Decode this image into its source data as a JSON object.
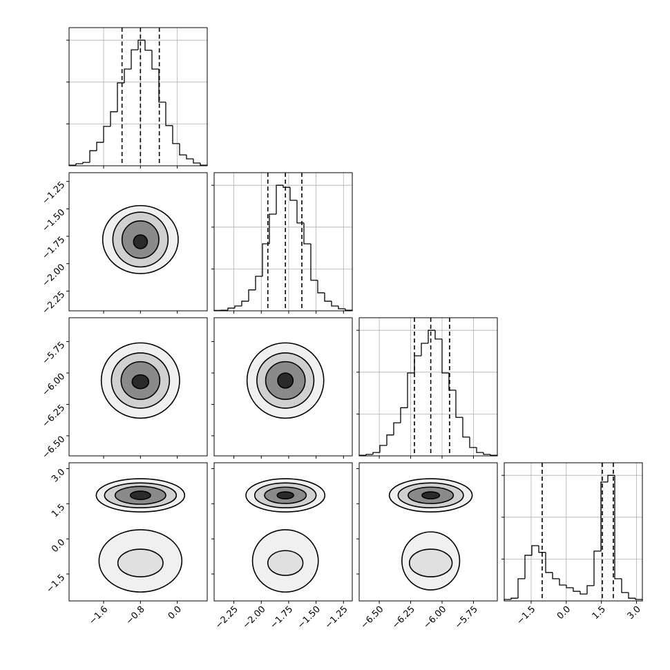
{
  "chart_data": {
    "type": "corner",
    "hist_ylim": [
      0,
      3300
    ],
    "hist_yticks": [
      1000,
      2000,
      3000
    ],
    "grid": true,
    "color": "#000000",
    "params": [
      {
        "lim": [
          -2.35,
          0.65
        ],
        "ticks": [
          {
            "value": -1.6,
            "label": "−1.6"
          },
          {
            "value": -0.8,
            "label": "−0.8"
          },
          {
            "value": 0,
            "label": "0.0"
          }
        ],
        "bins": [
          -2.35,
          -2.2,
          -2.05,
          -1.9,
          -1.75,
          -1.6,
          -1.45,
          -1.3,
          -1.15,
          -1.0,
          -0.85,
          -0.7,
          -0.55,
          -0.4,
          -0.25,
          -0.1,
          0.05,
          0.2,
          0.35,
          0.5,
          0.65
        ],
        "counts": [
          15,
          50,
          80,
          360,
          560,
          940,
          1290,
          1980,
          2310,
          2770,
          3000,
          2760,
          2310,
          1520,
          960,
          530,
          260,
          165,
          66,
          15
        ],
        "quantiles": [
          -1.2,
          -0.8,
          -0.39
        ]
      },
      {
        "lim": [
          -2.43,
          -1.17
        ],
        "ticks": [
          {
            "value": -2.25,
            "label": "−2.25"
          },
          {
            "value": -2.0,
            "label": "−2.00"
          },
          {
            "value": -1.75,
            "label": "−1.75"
          },
          {
            "value": -1.5,
            "label": "−1.50"
          },
          {
            "value": -1.25,
            "label": "−1.25"
          }
        ],
        "bins": [
          -2.43,
          -2.367,
          -2.304,
          -2.241,
          -2.178,
          -2.115,
          -2.052,
          -1.989,
          -1.926,
          -1.863,
          -1.8,
          -1.737,
          -1.674,
          -1.611,
          -1.548,
          -1.485,
          -1.422,
          -1.359,
          -1.296,
          -1.233,
          -1.17
        ],
        "counts": [
          10,
          15,
          65,
          115,
          230,
          500,
          825,
          1600,
          2310,
          3000,
          2950,
          2640,
          2100,
          1600,
          730,
          430,
          230,
          115,
          50,
          15
        ],
        "quantiles": [
          -1.94,
          -1.78,
          -1.63
        ]
      },
      {
        "lim": [
          -6.66,
          -5.56
        ],
        "ticks": [
          {
            "value": -6.5,
            "label": "−6.50"
          },
          {
            "value": -6.25,
            "label": "−6.25"
          },
          {
            "value": -6.0,
            "label": "−6.00"
          },
          {
            "value": -5.75,
            "label": "−5.75"
          }
        ],
        "bins": [
          -6.66,
          -6.605,
          -6.55,
          -6.495,
          -6.44,
          -6.385,
          -6.33,
          -6.275,
          -6.22,
          -6.165,
          -6.11,
          -6.055,
          -6.0,
          -5.945,
          -5.89,
          -5.835,
          -5.78,
          -5.725,
          -5.67,
          -5.615,
          -5.56
        ],
        "counts": [
          15,
          35,
          80,
          250,
          500,
          790,
          1150,
          1980,
          2390,
          2690,
          3000,
          2790,
          1980,
          1570,
          920,
          450,
          200,
          80,
          35,
          15
        ],
        "quantiles": [
          -6.22,
          -6.09,
          -5.94
        ]
      },
      {
        "lim": [
          -2.65,
          3.25
        ],
        "ticks": [
          {
            "value": -1.5,
            "label": "−1.5"
          },
          {
            "value": 0,
            "label": "0.0"
          },
          1.5,
          {
            "value": 3,
            "label": "3.0"
          }
        ],
        "bins": [
          -2.65,
          -2.355,
          -2.06,
          -1.765,
          -1.47,
          -1.175,
          -0.88,
          -0.585,
          -0.29,
          0.005,
          0.3,
          0.595,
          0.89,
          1.185,
          1.48,
          1.775,
          2.07,
          2.365,
          2.66,
          2.955,
          3.25
        ],
        "counts": [
          35,
          65,
          530,
          1090,
          1320,
          1160,
          680,
          530,
          380,
          315,
          230,
          165,
          365,
          1190,
          2840,
          3000,
          530,
          200,
          65,
          35
        ],
        "quantiles": [
          -1.03,
          1.54,
          2.01
        ]
      }
    ],
    "pairs": [
      [
        [
          {
            "cx": -0.8,
            "cy": -1.78,
            "rx": 0.82,
            "ry": 0.31
          },
          {
            "cx": -0.8,
            "cy": -1.78,
            "rx": 0.6,
            "ry": 0.25
          },
          {
            "cx": -0.8,
            "cy": -1.78,
            "rx": 0.4,
            "ry": 0.17
          },
          {
            "cx": -0.8,
            "cy": -1.8,
            "rx": 0.15,
            "ry": 0.063
          }
        ]
      ],
      [
        [
          {
            "cx": -0.8,
            "cy": -6.06,
            "rx": 0.85,
            "ry": 0.3
          },
          {
            "cx": -0.8,
            "cy": -6.06,
            "rx": 0.63,
            "ry": 0.22
          },
          {
            "cx": -0.8,
            "cy": -6.06,
            "rx": 0.42,
            "ry": 0.15
          },
          {
            "cx": -0.8,
            "cy": -6.07,
            "rx": 0.18,
            "ry": 0.055
          }
        ],
        [
          {
            "cx": -1.78,
            "cy": -6.06,
            "rx": 0.35,
            "ry": 0.3
          },
          {
            "cx": -1.78,
            "cy": -6.06,
            "rx": 0.26,
            "ry": 0.22
          },
          {
            "cx": -1.78,
            "cy": -6.06,
            "rx": 0.18,
            "ry": 0.15
          },
          {
            "cx": -1.78,
            "cy": -6.06,
            "rx": 0.07,
            "ry": 0.06
          }
        ]
      ],
      [
        [
          {
            "cx": -0.8,
            "cy": 1.86,
            "rx": 0.96,
            "ry": 0.71
          },
          {
            "cx": -0.8,
            "cy": 1.86,
            "rx": 0.78,
            "ry": 0.53
          },
          {
            "cx": -0.8,
            "cy": 1.86,
            "rx": 0.55,
            "ry": 0.38
          },
          {
            "cx": -0.8,
            "cy": 1.86,
            "rx": 0.22,
            "ry": 0.18
          },
          {
            "cx": -0.8,
            "cy": -0.94,
            "rx": 0.9,
            "ry": 1.33
          },
          {
            "cx": -0.8,
            "cy": -1.03,
            "rx": 0.49,
            "ry": 0.59
          }
        ],
        [
          {
            "cx": -1.78,
            "cy": 1.86,
            "rx": 0.36,
            "ry": 0.71
          },
          {
            "cx": -1.78,
            "cy": 1.86,
            "rx": 0.28,
            "ry": 0.53
          },
          {
            "cx": -1.78,
            "cy": 1.86,
            "rx": 0.19,
            "ry": 0.35
          },
          {
            "cx": -1.78,
            "cy": 1.86,
            "rx": 0.075,
            "ry": 0.15
          },
          {
            "cx": -1.78,
            "cy": -0.94,
            "rx": 0.3,
            "ry": 1.33
          },
          {
            "cx": -1.78,
            "cy": -1.03,
            "rx": 0.16,
            "ry": 0.53
          }
        ],
        [
          {
            "cx": -6.09,
            "cy": 1.86,
            "rx": 0.33,
            "ry": 0.71
          },
          {
            "cx": -6.09,
            "cy": 1.86,
            "rx": 0.26,
            "ry": 0.53
          },
          {
            "cx": -6.09,
            "cy": 1.86,
            "rx": 0.18,
            "ry": 0.35
          },
          {
            "cx": -6.09,
            "cy": 1.86,
            "rx": 0.07,
            "ry": 0.15
          },
          {
            "cx": -6.09,
            "cy": -0.94,
            "rx": 0.23,
            "ry": 1.24
          },
          {
            "cx": -6.09,
            "cy": -1.03,
            "rx": 0.17,
            "ry": 0.59
          }
        ]
      ]
    ]
  }
}
